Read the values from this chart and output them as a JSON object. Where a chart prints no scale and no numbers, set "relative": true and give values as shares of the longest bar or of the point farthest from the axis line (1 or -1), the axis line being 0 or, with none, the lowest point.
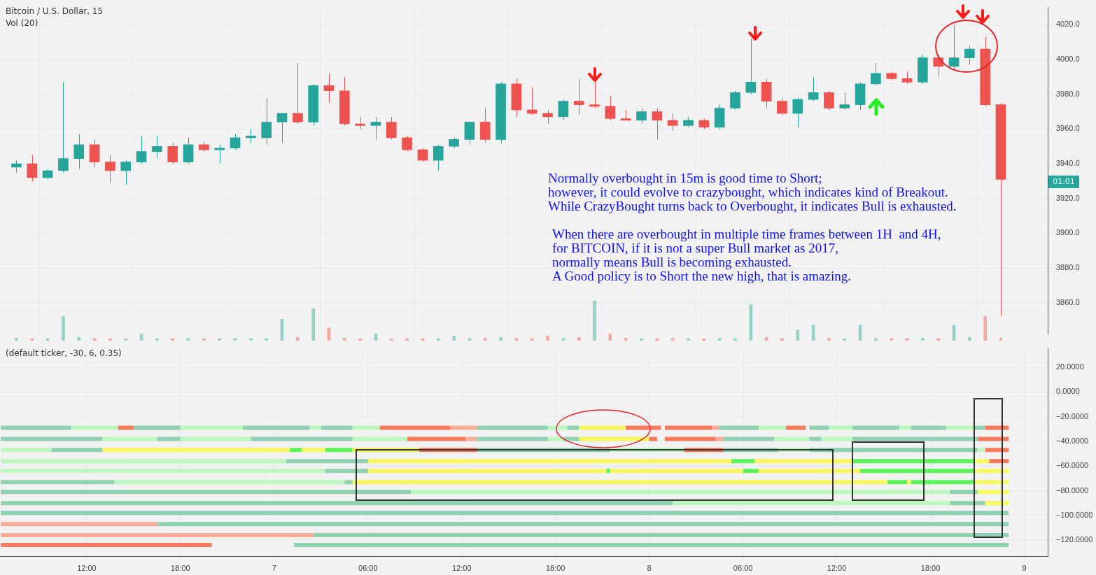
{
  "chart_data": [
    {
      "type": "candlestick",
      "title": "Bitcoin / U.S. Dollar, 15",
      "x": [
        "--03-06T07:30",
        "--03-06T08:30",
        "--03-06T09:30",
        "--03-06T10:30",
        "--03-06T11:30",
        "--03-06T12:30",
        "--03-06T13:30",
        "--03-06T14:30",
        "--03-06T15:30",
        "--03-06T16:30",
        "--03-06T17:30",
        "--03-06T18:30",
        "--03-06T19:30",
        "--03-06T20:30",
        "--03-06T21:30",
        "--03-06T22:30",
        "--03-06T23:30",
        "--03-07T00:30",
        "--03-07T01:30",
        "--03-07T02:30",
        "--03-07T03:30",
        "--03-07T04:30",
        "--03-07T05:30",
        "--03-07T06:30",
        "--03-07T07:30",
        "--03-07T08:30",
        "--03-07T09:30",
        "--03-07T10:30",
        "--03-07T11:30",
        "--03-07T12:30",
        "--03-07T13:30",
        "--03-07T14:30",
        "--03-07T15:30",
        "--03-07T16:30",
        "--03-07T17:30",
        "--03-07T18:30",
        "--03-07T19:30",
        "--03-07T20:30",
        "--03-07T21:30",
        "--03-07T22:30",
        "--03-07T23:30",
        "--03-08T00:30",
        "--03-08T01:30",
        "--03-08T02:30",
        "--03-08T03:30",
        "--03-08T04:30",
        "--03-08T05:30",
        "--03-08T06:30",
        "--03-08T07:30",
        "--03-08T08:30",
        "--03-08T09:30",
        "--03-08T10:30",
        "--03-08T11:30",
        "--03-08T12:30",
        "--03-08T13:30",
        "--03-08T14:30",
        "--03-08T15:30",
        "--03-08T16:30",
        "--03-08T17:30",
        "--03-08T18:30",
        "--03-08T19:30",
        "--03-08T20:30",
        "--03-08T21:30",
        "--03-08T22:30"
      ],
      "ohlc": [
        [
          3938,
          3942,
          3935,
          3940
        ],
        [
          3940,
          3945,
          3930,
          3932
        ],
        [
          3932,
          3937,
          3931,
          3936
        ],
        [
          3936,
          3987,
          3935,
          3943
        ],
        [
          3943,
          3957,
          3937,
          3951
        ],
        [
          3951,
          3954,
          3938,
          3941
        ],
        [
          3941,
          3945,
          3929,
          3936
        ],
        [
          3936,
          3942,
          3928,
          3941
        ],
        [
          3941,
          3956,
          3940,
          3947
        ],
        [
          3947,
          3956,
          3943,
          3950
        ],
        [
          3950,
          3952,
          3940,
          3941
        ],
        [
          3941,
          3955,
          3940,
          3951
        ],
        [
          3951,
          3953,
          3947,
          3948
        ],
        [
          3948,
          3951,
          3940,
          3949
        ],
        [
          3949,
          3957,
          3948,
          3955
        ],
        [
          3955,
          3960,
          3952,
          3956
        ],
        [
          3955,
          3978,
          3951,
          3964
        ],
        [
          3964,
          3969,
          3952,
          3969
        ],
        [
          3969,
          3998,
          3963,
          3964
        ],
        [
          3964,
          3986,
          3962,
          3985
        ],
        [
          3985,
          3992,
          3975,
          3982
        ],
        [
          3982,
          3990,
          3962,
          3963
        ],
        [
          3963,
          3967,
          3960,
          3962
        ],
        [
          3962,
          3967,
          3954,
          3964
        ],
        [
          3964,
          3967,
          3954,
          3955
        ],
        [
          3955,
          3956,
          3947,
          3948
        ],
        [
          3948,
          3949,
          3941,
          3942
        ],
        [
          3942,
          3951,
          3936,
          3950
        ],
        [
          3950,
          3955,
          3949,
          3954
        ],
        [
          3954,
          3964,
          3951,
          3964
        ],
        [
          3964,
          3972,
          3952,
          3954
        ],
        [
          3954,
          3987,
          3952,
          3986
        ],
        [
          3986,
          3989,
          3967,
          3971
        ],
        [
          3971,
          3984,
          3968,
          3969
        ],
        [
          3969,
          3971,
          3963,
          3967
        ],
        [
          3967,
          3977,
          3965,
          3976
        ],
        [
          3976,
          3989,
          3968,
          3974
        ],
        [
          3974,
          3990,
          3972,
          3973
        ],
        [
          3973,
          3979,
          3965,
          3966
        ],
        [
          3966,
          3971,
          3965,
          3965
        ],
        [
          3965,
          3972,
          3963,
          3970
        ],
        [
          3970,
          3972,
          3954,
          3965
        ],
        [
          3965,
          3969,
          3959,
          3962
        ],
        [
          3962,
          3967,
          3961,
          3965
        ],
        [
          3965,
          3966,
          3960,
          3961
        ],
        [
          3961,
          3974,
          3960,
          3972
        ],
        [
          3972,
          3982,
          3971,
          3981
        ],
        [
          3981,
          4012,
          3980,
          3987
        ],
        [
          3987,
          3989,
          3972,
          3976
        ],
        [
          3976,
          3978,
          3968,
          3969
        ],
        [
          3969,
          3978,
          3961,
          3977
        ],
        [
          3977,
          3990,
          3976,
          3981
        ],
        [
          3981,
          3982,
          3971,
          3972
        ],
        [
          3972,
          3981,
          3971,
          3974
        ],
        [
          3974,
          3987,
          3971,
          3986
        ],
        [
          3986,
          3998,
          3985,
          3992
        ],
        [
          3992,
          3993,
          3988,
          3989
        ],
        [
          3989,
          3993,
          3986,
          3987
        ],
        [
          3987,
          4003,
          3986,
          4001
        ],
        [
          4001,
          4003,
          3990,
          3996
        ],
        [
          3996,
          4020,
          3994,
          4001
        ],
        [
          4001,
          4008,
          3997,
          4006
        ],
        [
          4006,
          4013,
          3973,
          3974
        ],
        [
          3974,
          3975,
          3852,
          3931
        ]
      ],
      "colors": [
        "#26a69a",
        "#ef5350",
        "#26a69a",
        "#26a69a",
        "#26a69a",
        "#ef5350",
        "#ef5350",
        "#26a69a",
        "#26a69a",
        "#26a69a",
        "#ef5350",
        "#26a69a",
        "#ef5350",
        "#26a69a",
        "#26a69a",
        "#26a69a",
        "#26a69a",
        "#26a69a",
        "#ef5350",
        "#26a69a",
        "#ef5350",
        "#ef5350",
        "#ef5350",
        "#26a69a",
        "#ef5350",
        "#ef5350",
        "#ef5350",
        "#26a69a",
        "#26a69a",
        "#26a69a",
        "#ef5350",
        "#26a69a",
        "#ef5350",
        "#ef5350",
        "#ef5350",
        "#26a69a",
        "#ef5350",
        "#ef5350",
        "#ef5350",
        "#ef5350",
        "#26a69a",
        "#ef5350",
        "#ef5350",
        "#26a69a",
        "#ef5350",
        "#26a69a",
        "#26a69a",
        "#26a69a",
        "#ef5350",
        "#ef5350",
        "#26a69a",
        "#26a69a",
        "#ef5350",
        "#26a69a",
        "#26a69a",
        "#26a69a",
        "#ef5350",
        "#ef5350",
        "#26a69a",
        "#ef5350",
        "#26a69a",
        "#26a69a",
        "#ef5350",
        "#ef5350"
      ],
      "xlim": [
        "--03-06T06:27",
        "--03-09T01:30"
      ],
      "xticks": [
        {
          "value": "--03-06T12:00",
          "label": null
        },
        {
          "value": "--03-06T18:00",
          "label": null
        },
        {
          "value": "--03-07",
          "label": null
        },
        {
          "value": "--03-07T06:00",
          "label": null
        },
        {
          "value": "--03-07T12:00",
          "label": null
        },
        {
          "value": "--03-07T18:00",
          "label": null
        },
        {
          "value": "--03-08",
          "label": null
        },
        {
          "value": "--03-08T06:00",
          "label": null
        },
        {
          "value": "--03-08T12:00",
          "label": null
        },
        {
          "value": "--03-08T18:00",
          "label": null
        },
        {
          "value": "--03-09",
          "label": null
        }
      ],
      "ylim": [
        3842,
        4030
      ],
      "yticks": [
        {
          "value": 3860,
          "label": "3860.0"
        },
        {
          "value": 3880,
          "label": "3880.0"
        },
        {
          "value": 3900,
          "label": "3900.0"
        },
        {
          "value": 3920,
          "label": "3920.0"
        },
        {
          "value": 3940,
          "label": "3940.0"
        },
        {
          "value": 3960,
          "label": "3960.0"
        },
        {
          "value": 3980,
          "label": "3980.0"
        },
        {
          "value": 4000,
          "label": "4000.0"
        },
        {
          "value": 4020,
          "label": "4020.0"
        }
      ],
      "grid": true,
      "tick_labels": "y",
      "annotations": [
        "Normally overbought in 15m is good time to Short;\nhowever, it could evolve to crazybought, which indicates kind of Breakout.\nWhile CrazyBought turns back to Overbought, it indicates Bull is exhausted.",
        "When there are overbought in multiple time frames between 1H  and 4H,\nfor BITCOIN, if it is not a super Bull market as 2017,\nnormally means Bull is becoming exhausted.\nA Good policy is to Short the new high, that is amazing.",
        "01:01"
      ]
    },
    {
      "type": "bar",
      "title": "Vol (20)",
      "relative": true,
      "tick_labels": false,
      "categories": [
        null,
        null,
        null,
        null,
        null,
        null,
        null,
        null,
        null,
        null,
        null,
        null,
        null,
        null,
        null,
        null,
        null,
        null,
        null,
        null,
        null,
        null,
        null,
        null,
        null,
        null,
        null,
        null,
        null,
        null,
        null,
        null,
        null,
        null,
        null,
        null,
        null,
        null,
        null,
        null,
        null,
        null,
        null,
        null,
        null,
        null,
        null,
        null,
        null,
        null,
        null,
        null,
        null,
        null,
        null,
        null,
        null,
        null,
        null,
        null,
        null,
        null,
        null,
        null
      ],
      "values": [
        0.06,
        0.05,
        0.05,
        0.61,
        0.08,
        0.06,
        0.05,
        0.05,
        0.17,
        0.05,
        0.05,
        0.06,
        0.05,
        0.05,
        0.06,
        0.05,
        0.05,
        0.54,
        0.08,
        0.8,
        0.32,
        0.06,
        0.05,
        0.17,
        0.05,
        0.06,
        0.05,
        0.05,
        0.12,
        0.06,
        0.06,
        0.08,
        0.06,
        0.05,
        0.12,
        0.06,
        0.08,
        1,
        0.17,
        0.06,
        0.05,
        0.05,
        0.06,
        0.05,
        0.05,
        0.06,
        0.06,
        0.9,
        0.08,
        0.06,
        0.27,
        0.39,
        0.06,
        0.05,
        0.39,
        0.06,
        0.05,
        0.06,
        0.06,
        0.05,
        0.39,
        0.08,
        0.61,
        0.06
      ],
      "colors": [
        "#94d1c6",
        "#f4a7a3",
        "#94d1c6",
        "#94d1c6",
        "#94d1c6",
        "#f4a7a3",
        "#f4a7a3",
        "#94d1c6",
        "#94d1c6",
        "#94d1c6",
        "#f4a7a3",
        "#94d1c6",
        "#f4a7a3",
        "#94d1c6",
        "#94d1c6",
        "#94d1c6",
        "#94d1c6",
        "#94d1c6",
        "#f4a7a3",
        "#94d1c6",
        "#f4a7a3",
        "#f4a7a3",
        "#f4a7a3",
        "#94d1c6",
        "#f4a7a3",
        "#f4a7a3",
        "#f4a7a3",
        "#94d1c6",
        "#94d1c6",
        "#94d1c6",
        "#f4a7a3",
        "#94d1c6",
        "#f4a7a3",
        "#f4a7a3",
        "#f4a7a3",
        "#94d1c6",
        "#f4a7a3",
        "#94d1c6",
        "#f4a7a3",
        "#f4a7a3",
        "#94d1c6",
        "#f4a7a3",
        "#f4a7a3",
        "#94d1c6",
        "#f4a7a3",
        "#94d1c6",
        "#94d1c6",
        "#94d1c6",
        "#f4a7a3",
        "#f4a7a3",
        "#94d1c6",
        "#94d1c6",
        "#f4a7a3",
        "#94d1c6",
        "#94d1c6",
        "#94d1c6",
        "#f4a7a3",
        "#f4a7a3",
        "#94d1c6",
        "#f4a7a3",
        "#94d1c6",
        "#94d1c6",
        "#f4a7a3",
        "#f4a7a3"
      ]
    },
    {
      "type": "line",
      "title": "(default ticker, -30, 6, 0.35)",
      "xlim": [
        "--03-06T06:27",
        "--03-09T01:30"
      ],
      "xticks": [
        {
          "value": "--03-06T12:00",
          "label": "12:00"
        },
        {
          "value": "--03-06T18:00",
          "label": "18:00"
        },
        {
          "value": "--03-07",
          "label": "7"
        },
        {
          "value": "--03-07T06:00",
          "label": "06:00"
        },
        {
          "value": "--03-07T12:00",
          "label": "12:00"
        },
        {
          "value": "--03-07T18:00",
          "label": "18:00"
        },
        {
          "value": "--03-08",
          "label": "8"
        },
        {
          "value": "--03-08T06:00",
          "label": "06:00"
        },
        {
          "value": "--03-08T12:00",
          "label": "12:00"
        },
        {
          "value": "--03-08T18:00",
          "label": "18:00"
        },
        {
          "value": "--03-09",
          "label": "9"
        }
      ],
      "ylim": [
        -133,
        35
      ],
      "yticks": [
        {
          "value": 20,
          "label": "20.0000"
        },
        {
          "value": 0,
          "label": "0.0000"
        },
        {
          "value": -20,
          "label": "−20.0000"
        },
        {
          "value": -40,
          "label": "−40.0000"
        },
        {
          "value": -60,
          "label": "−60.0000"
        },
        {
          "value": -80,
          "label": "−80.0000"
        },
        {
          "value": -100,
          "label": "−100.0000"
        },
        {
          "value": -120,
          "label": "−120.0000"
        }
      ],
      "grid": true,
      "series": [
        {
          "color": "#8fd1b1",
          "x": [
            "--03-06T06:30",
            "--03-06T11:00",
            null,
            "--03-06T15:00",
            "--03-06T18:00",
            null,
            "--03-06T22:00",
            "--03-07T02:15",
            null,
            "--03-07T03:00",
            "--03-07T05:00",
            null,
            "--03-07T13:00",
            "--03-07T17:30",
            null,
            "--03-07T18:45",
            "--03-07T19:30",
            null,
            "--03-08T04:30",
            "--03-08T07:00",
            null,
            "--03-08T10:15",
            "--03-08T11:30",
            null,
            "--03-08T13:00",
            "--03-08T16:00",
            null,
            "--03-08T16:45",
            "--03-08T19:00",
            null,
            "--03-08T20:45",
            "--03-08T21:30"
          ],
          "values": [
            -29,
            -29,
            null,
            -29,
            -29,
            null,
            -29,
            -29,
            null,
            -29,
            -29,
            null,
            -29,
            -29,
            null,
            -29,
            -29,
            null,
            -29,
            -29,
            null,
            -29,
            -29,
            null,
            -29,
            -29,
            null,
            -29,
            -29,
            null,
            -29,
            -29
          ]
        },
        {
          "color": "#bdf7bd",
          "x": [
            "--03-06T11:00",
            "--03-06T14:00",
            null,
            "--03-06T18:00",
            "--03-06T22:00",
            null,
            "--03-07T02:15",
            "--03-07T03:00",
            null,
            "--03-07T05:00",
            "--03-07T06:45",
            null,
            "--03-07T17:30",
            "--03-07T18:45",
            null,
            "--03-08T07:00",
            "--03-08T08:45",
            null,
            "--03-08T11:30",
            "--03-08T13:00",
            null,
            "--03-08T16:00",
            "--03-08T16:45",
            null,
            "--03-08T19:00",
            "--03-08T20:45"
          ],
          "values": [
            -29,
            -29,
            null,
            -29,
            -29,
            null,
            -29,
            -29,
            null,
            -29,
            -29,
            null,
            -29,
            -29,
            null,
            -29,
            -29,
            null,
            -29,
            -29,
            null,
            -29,
            -29,
            null,
            -29,
            -29
          ]
        },
        {
          "color": "#f77b5c",
          "x": [
            "--03-06T14:00",
            "--03-06T15:00",
            null,
            "--03-07T06:45",
            "--03-07T11:15",
            null,
            "--03-07T22:30",
            "--03-08T00:45",
            null,
            "--03-08T01:00",
            "--03-08T04:00",
            null,
            "--03-08T08:45",
            "--03-08T10:00",
            null,
            "--03-08T21:30",
            "--03-08T23:00"
          ],
          "values": [
            -29,
            -29,
            null,
            -29,
            -29,
            null,
            -29,
            -29,
            null,
            -29,
            -29,
            null,
            -29,
            -29,
            null,
            -29,
            -29
          ]
        },
        {
          "color": "#f7ad9a",
          "x": [
            "--03-07T11:15",
            "--03-07T13:00",
            null,
            "--03-08T04:00",
            "--03-08T04:30"
          ],
          "values": [
            -29,
            -29,
            null,
            -29,
            -29
          ]
        },
        {
          "color": "#f7f75e",
          "x": [
            "--03-07T19:30",
            "--03-07T22:30"
          ],
          "values": [
            -29,
            -29
          ]
        },
        {
          "color": "#8fd1b1",
          "x": [
            "--03-06T06:30",
            "--03-06T13:00",
            null,
            "--03-06T16:30",
            "--03-06T18:00",
            null,
            "--03-06T22:30",
            "--03-07T05:00",
            null,
            "--03-07T13:00",
            "--03-07T17:30",
            null,
            "--03-07T18:30",
            "--03-07T19:30",
            null,
            "--03-08T04:45",
            "--03-08T08:00",
            null,
            "--03-08T10:15",
            "--03-08T11:00",
            null,
            "--03-08T13:00",
            "--03-08T21:00"
          ],
          "values": [
            -38,
            -38,
            null,
            -38,
            -38,
            null,
            -38,
            -38,
            null,
            -38,
            -38,
            null,
            -38,
            -38,
            null,
            -38,
            -38,
            null,
            -38,
            -38,
            null,
            -38,
            -38
          ]
        },
        {
          "color": "#bdf7bd",
          "x": [
            "--03-06T13:00",
            "--03-06T16:30",
            null,
            "--03-06T18:00",
            "--03-06T22:30",
            null,
            "--03-07T05:00",
            "--03-07T08:30",
            null,
            "--03-07T17:30",
            "--03-07T18:30",
            null,
            "--03-08T08:00",
            "--03-08T10:15",
            null,
            "--03-08T11:00",
            "--03-08T13:00"
          ],
          "values": [
            -38,
            -38,
            null,
            -38,
            -38,
            null,
            -38,
            -38,
            null,
            -38,
            -38,
            null,
            -38,
            -38,
            null,
            -38,
            -38
          ]
        },
        {
          "color": "#f77b5c",
          "x": [
            "--03-07T08:30",
            "--03-07T12:15",
            null,
            "--03-08T00:00",
            "--03-08T00:30",
            null,
            "--03-08T01:00",
            "--03-08T04:15",
            null,
            "--03-08T21:00",
            "--03-08T23:00"
          ],
          "values": [
            -38,
            -38,
            null,
            -38,
            -38,
            null,
            -38,
            -38,
            null,
            -38,
            -38
          ]
        },
        {
          "color": "#f7ad9a",
          "x": [
            "--03-07T12:15",
            "--03-07T13:00",
            null,
            "--03-08T04:15",
            "--03-08T04:45"
          ],
          "values": [
            -38,
            -38,
            null,
            -38,
            -38
          ]
        },
        {
          "color": "#f7f75e",
          "x": [
            "--03-07T19:30",
            "--03-08T00:00"
          ],
          "values": [
            -38,
            -38
          ]
        },
        {
          "color": "#bdf7bd",
          "x": [
            "--03-06T06:30",
            "--03-06T09:45",
            null,
            "--03-07T21:30",
            "--03-08T02:15",
            null,
            "--03-08T08:15",
            "--03-08T10:15",
            null,
            "--03-08T21:00",
            "--03-08T21:30"
          ],
          "values": [
            -47,
            -47,
            null,
            -47,
            -47,
            null,
            -47,
            -47,
            null,
            -47,
            -47
          ]
        },
        {
          "color": "#8fd1b1",
          "x": [
            "--03-06T09:45",
            "--03-06T13:00",
            null,
            "--03-07T13:00",
            "--03-07T21:30",
            null,
            "--03-08T04:45",
            "--03-08T08:15",
            null,
            "--03-08T10:15",
            "--03-08T21:00"
          ],
          "values": [
            -47,
            -47,
            null,
            -47,
            -47,
            null,
            -47,
            -47,
            null,
            -47,
            -47
          ]
        },
        {
          "color": "#f7f75e",
          "x": [
            "--03-06T13:00",
            "--03-07T01:00",
            null,
            "--03-07T01:45",
            "--03-07T03:15",
            null,
            "--03-07T05:00",
            "--03-07T09:15"
          ],
          "values": [
            -47,
            -47,
            null,
            -47,
            -47,
            null,
            -47,
            -47
          ]
        },
        {
          "color": "#5cf25c",
          "x": [
            "--03-07T01:00",
            "--03-07T01:45",
            null,
            "--03-07T03:15",
            "--03-07T05:00"
          ],
          "values": [
            -47,
            -47,
            null,
            -47,
            -47
          ]
        },
        {
          "color": "#f77b5c",
          "x": [
            "--03-07T09:15",
            "--03-07T13:00",
            null,
            "--03-08T02:15",
            "--03-08T04:45",
            null,
            "--03-08T21:30",
            "--03-08T23:00"
          ],
          "values": [
            -47,
            -47,
            null,
            -47,
            -47,
            null,
            -47,
            -47
          ]
        },
        {
          "color": "#bdf7bd",
          "x": [
            "--03-06T06:30",
            "--03-07T00:45"
          ],
          "values": [
            -56,
            -56
          ]
        },
        {
          "color": "#8fd1b1",
          "x": [
            "--03-07T00:45",
            "--03-07T06:00"
          ],
          "values": [
            -56,
            -56
          ]
        },
        {
          "color": "#f7f75e",
          "x": [
            "--03-07T06:00",
            "--03-08T05:15",
            null,
            "--03-08T06:45",
            "--03-08T13:00",
            null,
            "--03-08T20:45",
            "--03-08T21:45"
          ],
          "values": [
            -56,
            -56,
            null,
            -56,
            -56,
            null,
            -56,
            -56
          ]
        },
        {
          "color": "#5cf25c",
          "x": [
            "--03-08T05:15",
            "--03-08T06:45",
            null,
            "--03-08T13:00",
            "--03-08T20:45"
          ],
          "values": [
            -56,
            -56,
            null,
            -56,
            -56
          ]
        },
        {
          "color": "#f77b5c",
          "x": [
            "--03-08T21:45",
            "--03-08T23:00"
          ],
          "values": [
            -56,
            -56
          ]
        },
        {
          "color": "#bdf7bd",
          "x": [
            "--03-06T06:30",
            "--03-07T03:15"
          ],
          "values": [
            -64,
            -64
          ]
        },
        {
          "color": "#8fd1b1",
          "x": [
            "--03-07T03:15",
            "--03-07T06:00"
          ],
          "values": [
            -64,
            -64
          ]
        },
        {
          "color": "#f7f75e",
          "x": [
            "--03-07T06:00",
            "--03-07T21:15",
            null,
            "--03-07T21:30",
            "--03-08T06:00",
            null,
            "--03-08T07:00",
            "--03-08T13:30",
            null,
            "--03-08T20:45",
            "--03-08T23:00"
          ],
          "values": [
            -64,
            -64,
            null,
            -64,
            -64,
            null,
            -64,
            -64,
            null,
            -64,
            -64
          ]
        },
        {
          "color": "#5cf25c",
          "x": [
            "--03-07T21:15",
            "--03-07T21:30",
            null,
            "--03-08T06:00",
            "--03-08T07:00",
            null,
            "--03-08T13:30",
            "--03-08T20:45"
          ],
          "values": [
            -64,
            -64,
            null,
            -64,
            -64,
            null,
            -64,
            -64
          ]
        },
        {
          "color": "#8fd1b1",
          "x": [
            "--03-06T06:30",
            "--03-06T13:45",
            null,
            "--03-07T04:30",
            "--03-07T05:00"
          ],
          "values": [
            -73,
            -73,
            null,
            -73,
            -73
          ]
        },
        {
          "color": "#bdf7bd",
          "x": [
            "--03-06T13:45",
            "--03-07T04:30"
          ],
          "values": [
            -73,
            -73
          ]
        },
        {
          "color": "#f7f75e",
          "x": [
            "--03-07T05:00",
            "--03-08T15:15",
            null,
            "--03-08T16:30",
            "--03-08T16:45",
            null,
            "--03-08T20:45",
            "--03-08T23:00"
          ],
          "values": [
            -73,
            -73,
            null,
            -73,
            -73,
            null,
            -73,
            -73
          ]
        },
        {
          "color": "#5cf25c",
          "x": [
            "--03-08T15:15",
            "--03-08T16:30",
            null,
            "--03-08T16:45",
            "--03-08T20:45"
          ],
          "values": [
            -73,
            -73,
            null,
            -73,
            -73
          ]
        },
        {
          "color": "#8fd1b1",
          "x": [
            "--03-06T06:30",
            "--03-07T08:45",
            null,
            "--03-08T19:15",
            "--03-08T21:00"
          ],
          "values": [
            -81,
            -81,
            null,
            -81,
            -81
          ]
        },
        {
          "color": "#bdf7bd",
          "x": [
            "--03-07T08:45",
            "--03-08T19:15"
          ],
          "values": [
            -81,
            -81
          ]
        },
        {
          "color": "#f7f75e",
          "x": [
            "--03-08T21:00",
            "--03-08T23:00"
          ],
          "values": [
            -81,
            -81
          ]
        },
        {
          "color": "#8fd1b1",
          "x": [
            "--03-06T06:30",
            "--03-08T01:30",
            null,
            "--03-08T19:15",
            "--03-08T21:30"
          ],
          "values": [
            -90,
            -90,
            null,
            -90,
            -90
          ]
        },
        {
          "color": "#bdf7bd",
          "x": [
            "--03-08T01:30",
            "--03-08T19:15"
          ],
          "values": [
            -90,
            -90
          ]
        },
        {
          "color": "#f7f75e",
          "x": [
            "--03-08T21:30",
            "--03-08T23:00"
          ],
          "values": [
            -90,
            -90
          ]
        },
        {
          "color": "#8fd1b1",
          "x": [
            "--03-06T06:30",
            "--03-08T23:00"
          ],
          "values": [
            -98,
            -98
          ]
        },
        {
          "color": "#f7ad9a",
          "x": [
            "--03-06T06:30",
            "--03-06T16:30"
          ],
          "values": [
            -107,
            -107
          ]
        },
        {
          "color": "#8fd1b1",
          "x": [
            "--03-06T16:30",
            "--03-08T23:00"
          ],
          "values": [
            -107,
            -107
          ]
        },
        {
          "color": "#f7ad9a",
          "x": [
            "--03-06T06:30",
            "--03-07T02:30"
          ],
          "values": [
            -116,
            -116
          ]
        },
        {
          "color": "#8fd1b1",
          "x": [
            "--03-07T02:30",
            "--03-08T23:00"
          ],
          "values": [
            -116,
            -116
          ]
        },
        {
          "color": "#f77b5c",
          "x": [
            "--03-06T06:30",
            "--03-06T20:00"
          ],
          "values": [
            -124,
            -124
          ]
        },
        {
          "color": "#8fd1b1",
          "x": [
            "--03-07T01:15",
            "--03-08T23:00"
          ],
          "values": [
            -124,
            -124
          ]
        }
      ]
    }
  ]
}
